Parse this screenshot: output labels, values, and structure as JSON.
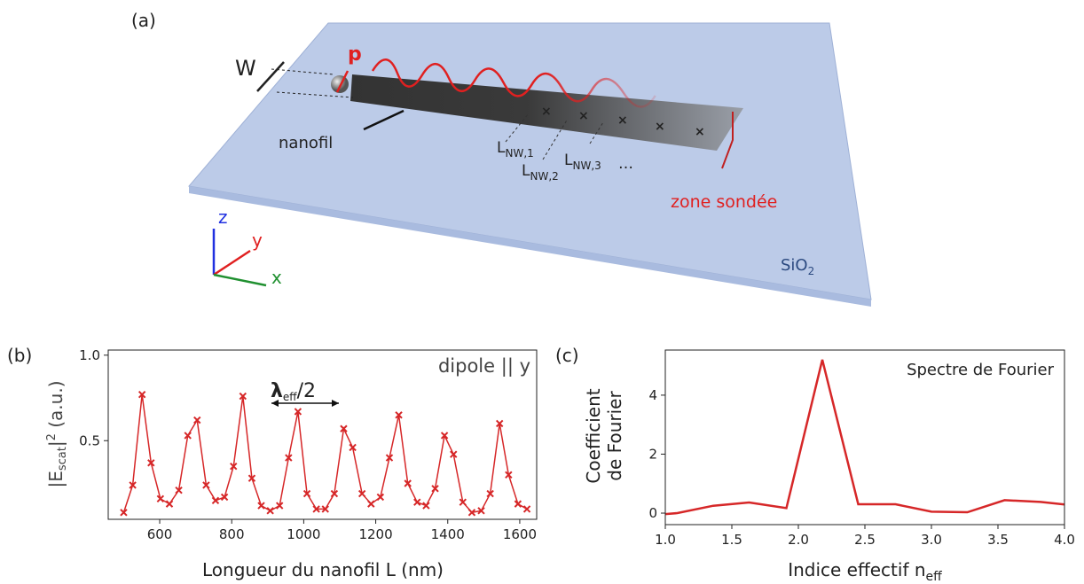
{
  "schematic": {
    "panel": "(a)",
    "W": "W",
    "p": "p",
    "nanofil": "nanofil",
    "lengths": [
      {
        "L": "L",
        "sub": "NW,1"
      },
      {
        "L": "L",
        "sub": "NW,2"
      },
      {
        "L": "L",
        "sub": "NW,3"
      }
    ],
    "ellipsis": "…",
    "zone": "zone sondée",
    "axes": [
      "z",
      "y",
      "x"
    ],
    "substrate": {
      "main": "SiO",
      "sub": "2"
    }
  },
  "chart_data": [
    {
      "panel": "(b)",
      "type": "line",
      "markers": "x",
      "color": "#d62728",
      "x": [
        500,
        525,
        551,
        576,
        602,
        627,
        653,
        678,
        704,
        729,
        755,
        780,
        805,
        831,
        856,
        882,
        907,
        933,
        958,
        984,
        1009,
        1035,
        1060,
        1085,
        1111,
        1136,
        1162,
        1187,
        1213,
        1238,
        1264,
        1289,
        1315,
        1340,
        1365,
        1391,
        1416,
        1442,
        1467,
        1493,
        1518,
        1544,
        1569,
        1595,
        1620
      ],
      "values": [
        0.08,
        0.24,
        0.77,
        0.37,
        0.16,
        0.13,
        0.21,
        0.53,
        0.62,
        0.24,
        0.15,
        0.17,
        0.35,
        0.76,
        0.28,
        0.12,
        0.09,
        0.12,
        0.4,
        0.67,
        0.19,
        0.1,
        0.1,
        0.19,
        0.57,
        0.46,
        0.19,
        0.13,
        0.17,
        0.4,
        0.65,
        0.25,
        0.14,
        0.12,
        0.22,
        0.53,
        0.42,
        0.14,
        0.08,
        0.09,
        0.19,
        0.6,
        0.3,
        0.13,
        0.1
      ],
      "xlim": [
        457,
        1647
      ],
      "ylim": [
        0.04,
        1.03
      ],
      "xticks": [
        600,
        800,
        1000,
        1200,
        1400,
        1600
      ],
      "yticks": [
        0.5,
        {
          "value": 1,
          "label": "1.0"
        }
      ],
      "xlabel": "Longueur du nanofil L (nm)",
      "ylabel": {
        "main": "|E",
        "sub": "scat",
        "rest": "|",
        "sup": "2",
        "tail": " (a.u.)"
      },
      "legend_text": "dipole || y",
      "annotation": {
        "main": "λ",
        "sub": "eff",
        "rest": "/2"
      }
    },
    {
      "panel": "(c)",
      "type": "line",
      "color": "#d62728",
      "x": [
        0.81,
        1.09,
        1.36,
        1.63,
        1.91,
        2.18,
        2.45,
        2.73,
        3.0,
        3.27,
        3.55,
        3.82,
        4.09
      ],
      "values": [
        -0.1,
        0.0,
        0.25,
        0.36,
        0.17,
        5.2,
        0.3,
        0.3,
        0.05,
        0.03,
        0.44,
        0.38,
        0.25
      ],
      "xlim": [
        1,
        4
      ],
      "ylim": [
        -0.39,
        5.53
      ],
      "xticks": [
        {
          "value": 1,
          "label": "1.0"
        },
        1.5,
        {
          "value": 2,
          "label": "2.0"
        },
        2.5,
        {
          "value": 3,
          "label": "3.0"
        },
        3.5,
        {
          "value": 4,
          "label": "4.0"
        }
      ],
      "yticks": [
        0,
        2,
        4
      ],
      "legend_text": "Spectre de Fourier",
      "ylabel": [
        "Coefficient",
        "de Fourier"
      ],
      "xlabel": {
        "main": "Indice effectif n",
        "sub": "eff"
      }
    }
  ]
}
